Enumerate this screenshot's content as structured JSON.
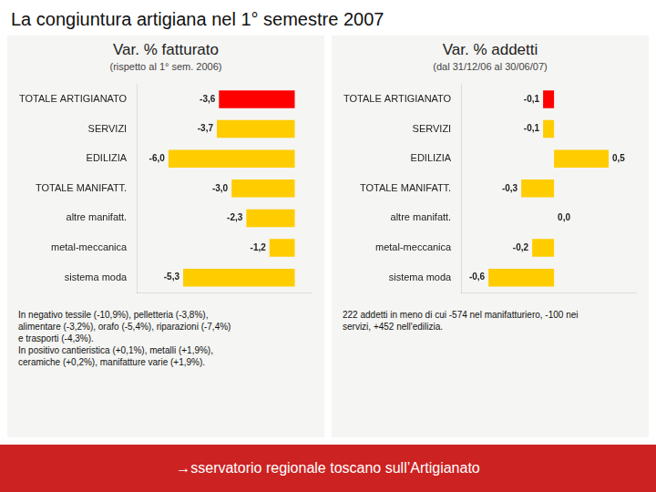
{
  "title": "La congiuntura artigiana nel 1° semestre 2007",
  "footer": "→sservatorio regionale toscano sull’Artigianato",
  "chart_data": [
    {
      "type": "bar",
      "orientation": "horizontal",
      "title": "Var. % fatturato",
      "subtitle": "(rispetto al 1° sem. 2006)",
      "categories": [
        "TOTALE ARTIGIANATO",
        "SERVIZI",
        "EDILIZIA",
        "TOTALE MANIFATT.",
        "altre manifatt.",
        "metal-meccanica",
        "sistema moda"
      ],
      "values": [
        -3.6,
        -3.7,
        -6.0,
        -3.0,
        -2.3,
        -1.2,
        -5.3
      ],
      "value_labels": [
        "-3,6",
        "-3,7",
        "-6,0",
        "-3,0",
        "-2,3",
        "-1,2",
        "-5,3"
      ],
      "colors": [
        "#ff0000",
        "#ffcc00",
        "#ffcc00",
        "#ffcc00",
        "#ffcc00",
        "#ffcc00",
        "#ffcc00"
      ],
      "xlim": [
        -7.5,
        0.8
      ],
      "grid": false,
      "data_labels": true,
      "tick_labels": "y",
      "annotations": [
        "In negativo tessile (-10,9%),  pelletteria (-3,8%),",
        "alimentare (-3,2%), orafo (-5,4%), riparazioni (-7,4%)",
        "e trasporti (-4,3%).",
        "In positivo cantieristica (+0,1%), metalli (+1,9%),",
        "ceramiche (+0,2%), manifatture varie (+1,9%)."
      ]
    },
    {
      "type": "bar",
      "orientation": "horizontal",
      "title": "Var. % addetti",
      "subtitle": "(dal 31/12/06 al 30/06/07)",
      "categories": [
        "TOTALE ARTIGIANATO",
        "SERVIZI",
        "EDILIZIA",
        "TOTALE MANIFATT.",
        "altre manifatt.",
        "metal-meccanica",
        "sistema moda"
      ],
      "values": [
        -0.1,
        -0.1,
        0.5,
        -0.3,
        0.0,
        -0.2,
        -0.6
      ],
      "value_labels": [
        "-0,1",
        "-0,1",
        "0,5",
        "-0,3",
        "0,0",
        "-0,2",
        "-0,6"
      ],
      "colors": [
        "#ff0000",
        "#ffcc00",
        "#ffcc00",
        "#ffcc00",
        "#ffcc00",
        "#ffcc00",
        "#ffcc00"
      ],
      "xlim": [
        -0.85,
        0.75
      ],
      "grid": false,
      "data_labels": true,
      "tick_labels": "y",
      "annotations": [
        "222 addetti in meno di cui -574 nel manifatturiero, -100 nei",
        "servizi, +452 nell'edilizia."
      ]
    }
  ]
}
